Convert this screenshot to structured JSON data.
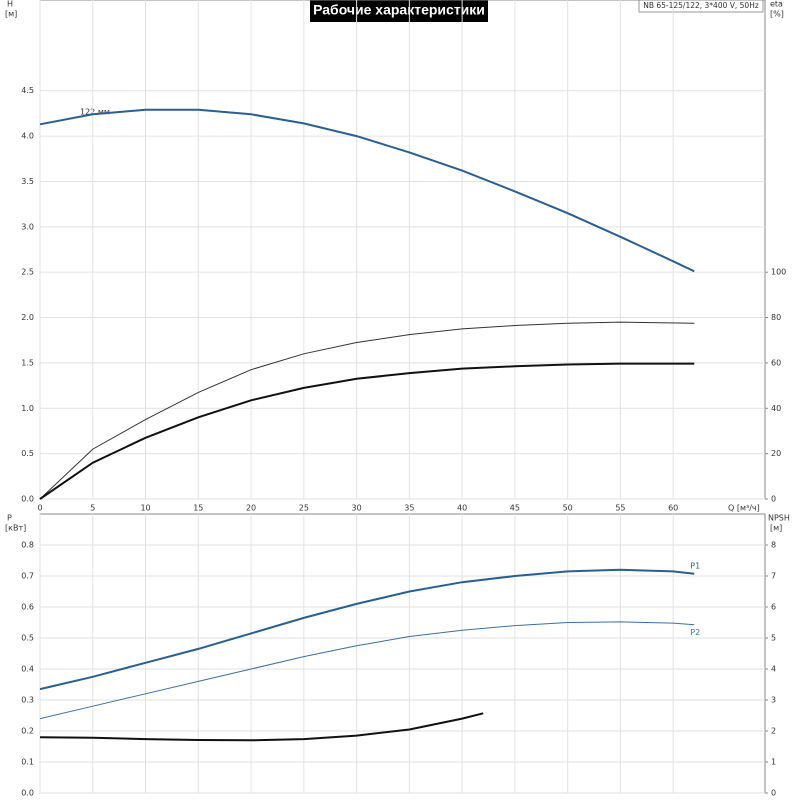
{
  "chart_data": [
    {
      "type": "line",
      "title": "Рабочие характеристики",
      "subtitle": "NB 65-125/122, 3*400 V, 50Hz",
      "y_label": "H",
      "y_unit": "[м]",
      "y2_label": "eta",
      "y2_unit": "[%]",
      "x_label": "Q [м³/ч]",
      "annotation": "122 мм",
      "xlim": [
        0,
        68.7
      ],
      "xticks": [
        0,
        5,
        10,
        15,
        20,
        25,
        30,
        35,
        40,
        45,
        50,
        55,
        60
      ],
      "ylim": [
        0,
        5.5
      ],
      "yticks": [
        {
          "value": 0,
          "label": "0.0"
        },
        0.5,
        {
          "value": 1,
          "label": "1.0"
        },
        1.5,
        {
          "value": 2,
          "label": "2.0"
        },
        2.5,
        {
          "value": 3,
          "label": "3.0"
        },
        3.5,
        {
          "value": 4,
          "label": "4.0"
        },
        4.5
      ],
      "y2lim": [
        0,
        220
      ],
      "y2ticks": [
        0,
        20,
        40,
        60,
        80,
        100
      ],
      "grid": true,
      "series": [
        {
          "color": "#2a5f96",
          "x": [
            0,
            5,
            10,
            15,
            20,
            25,
            30,
            35,
            40,
            45,
            50,
            55,
            60,
            62
          ],
          "values": [
            4.13,
            4.24,
            4.29,
            4.29,
            4.24,
            4.14,
            4.0,
            3.82,
            3.62,
            3.39,
            3.15,
            2.89,
            2.62,
            2.51
          ]
        },
        {
          "color": "#333333",
          "axis": "y2",
          "x": [
            0,
            5,
            10,
            15,
            20,
            25,
            30,
            35,
            40,
            45,
            50,
            55,
            62
          ],
          "values": [
            0,
            22,
            35,
            47,
            57,
            64,
            69,
            72.5,
            75,
            76.5,
            77.5,
            78,
            77.5
          ]
        },
        {
          "color": "#111111",
          "axis": "y2",
          "x": [
            0,
            5,
            10,
            15,
            20,
            25,
            30,
            35,
            40,
            45,
            50,
            55,
            62
          ],
          "values": [
            0,
            16,
            27,
            36,
            43.5,
            49,
            53,
            55.5,
            57.5,
            58.5,
            59.3,
            59.7,
            59.7
          ]
        }
      ]
    },
    {
      "type": "line",
      "y_label": "P",
      "y_unit": "[кВт]",
      "y2_label": "NPSH",
      "y2_unit": "[м]",
      "xlim": [
        0,
        68.7
      ],
      "ylim": [
        0,
        0.9
      ],
      "yticks": [
        {
          "value": 0,
          "label": "0.0"
        },
        0.1,
        0.2,
        0.3,
        0.4,
        0.5,
        0.6,
        0.7,
        0.8
      ],
      "y2lim": [
        0,
        9
      ],
      "y2ticks": [
        0,
        1,
        2,
        3,
        4,
        5,
        6,
        7,
        8
      ],
      "grid": true,
      "series": [
        {
          "name": "P1",
          "color": "#2a5f96",
          "x": [
            0,
            5,
            10,
            15,
            20,
            25,
            30,
            35,
            40,
            45,
            50,
            55,
            60,
            62
          ],
          "values": [
            0.335,
            0.375,
            0.42,
            0.465,
            0.515,
            0.565,
            0.61,
            0.65,
            0.68,
            0.7,
            0.715,
            0.72,
            0.715,
            0.707
          ]
        },
        {
          "name": "P2",
          "color": "#3b6fa6",
          "x": [
            0,
            5,
            10,
            15,
            20,
            25,
            30,
            35,
            40,
            45,
            50,
            55,
            60,
            62
          ],
          "values": [
            0.24,
            0.28,
            0.32,
            0.36,
            0.4,
            0.44,
            0.475,
            0.505,
            0.525,
            0.54,
            0.55,
            0.552,
            0.548,
            0.543
          ]
        },
        {
          "color": "#111111",
          "axis": "y2",
          "x": [
            0,
            5,
            10,
            15,
            20,
            25,
            30,
            35,
            40,
            42
          ],
          "values": [
            1.8,
            1.78,
            1.74,
            1.71,
            1.7,
            1.74,
            1.85,
            2.05,
            2.4,
            2.57
          ]
        }
      ]
    }
  ]
}
